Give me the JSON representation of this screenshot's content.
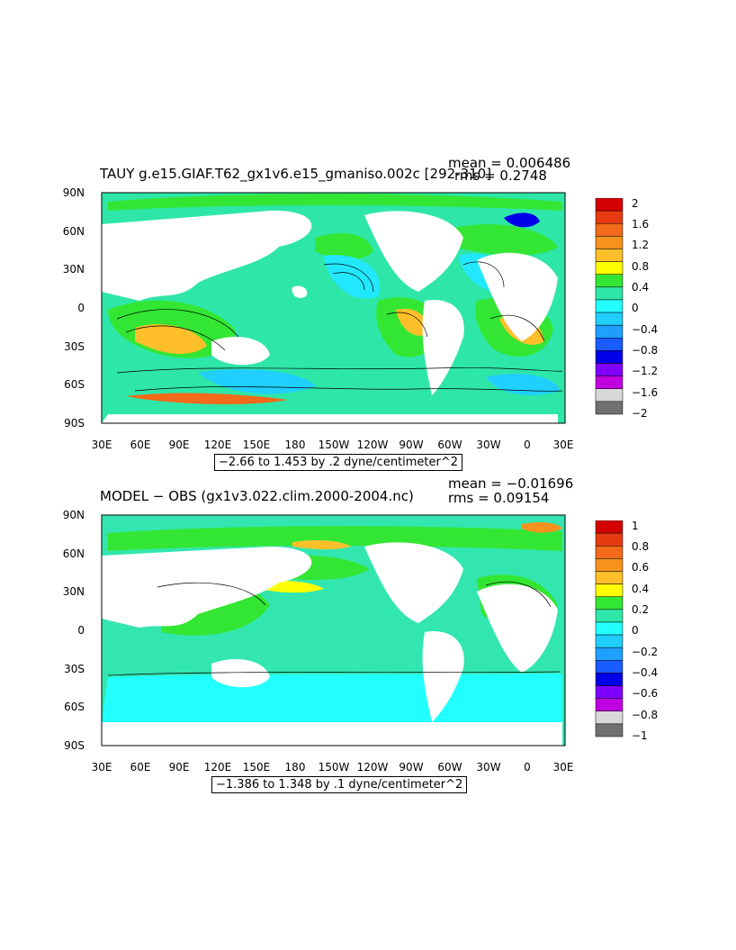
{
  "panels": [
    {
      "title": "TAUY g.e15.GIAF.T62_gx1v6.e15_gmaniso.002c [292-310]",
      "mean": "mean = 0.006486",
      "rms": "rms = 0.2748",
      "range": "−2.66 to 1.453 by .2 dyne/centimeter^2",
      "lat_labels": [
        "90N",
        "60N",
        "30N",
        "0",
        "30S",
        "60S",
        "90S"
      ],
      "lon_labels": [
        "30E",
        "60E",
        "90E",
        "120E",
        "150E",
        "180",
        "150W",
        "120W",
        "90W",
        "60W",
        "30W",
        "0",
        "30E"
      ],
      "colorbar": {
        "labels": [
          "2",
          "1.6",
          "1.2",
          "0.8",
          "0.4",
          "0",
          "−0.4",
          "−0.8",
          "−1.2",
          "−1.6",
          "−2"
        ],
        "colors": [
          "#d40000",
          "#e83a10",
          "#f26a1a",
          "#f7921e",
          "#ffbf2a",
          "#ffff00",
          "#33e633",
          "#2ee6a8",
          "#22ffff",
          "#20cfff",
          "#1f9fff",
          "#1a5bff",
          "#0000e8",
          "#8000ff",
          "#c000e0",
          "#d8d8d8",
          "#707070"
        ]
      }
    },
    {
      "title": "MODEL − OBS (gx1v3.022.clim.2000-2004.nc)",
      "mean": "mean = −0.01696",
      "rms": "rms = 0.09154",
      "range": "−1.386 to 1.348 by .1 dyne/centimeter^2",
      "lat_labels": [
        "90N",
        "60N",
        "30N",
        "0",
        "30S",
        "60S",
        "90S"
      ],
      "lon_labels": [
        "30E",
        "60E",
        "90E",
        "120E",
        "150E",
        "180",
        "150W",
        "120W",
        "90W",
        "60W",
        "30W",
        "0",
        "30E"
      ],
      "colorbar": {
        "labels": [
          "1",
          "0.8",
          "0.6",
          "0.4",
          "0.2",
          "0",
          "−0.2",
          "−0.4",
          "−0.6",
          "−0.8",
          "−1"
        ],
        "colors": [
          "#d40000",
          "#e83a10",
          "#f26a1a",
          "#f7921e",
          "#ffbf2a",
          "#ffff00",
          "#33e633",
          "#2ee6a8",
          "#22ffff",
          "#20cfff",
          "#1f9fff",
          "#1a5bff",
          "#0000e8",
          "#8000ff",
          "#c000e0",
          "#d8d8d8",
          "#707070"
        ]
      }
    }
  ],
  "map_colors": {
    "land": "#ffffff",
    "ocean_top": "#2ee6a8",
    "ocean_bot": "#33e6b0",
    "positive": "#33e633",
    "positive_high": "#ffbf2a",
    "negative": "#22e8ff",
    "negative_low": "#1f9fff"
  }
}
